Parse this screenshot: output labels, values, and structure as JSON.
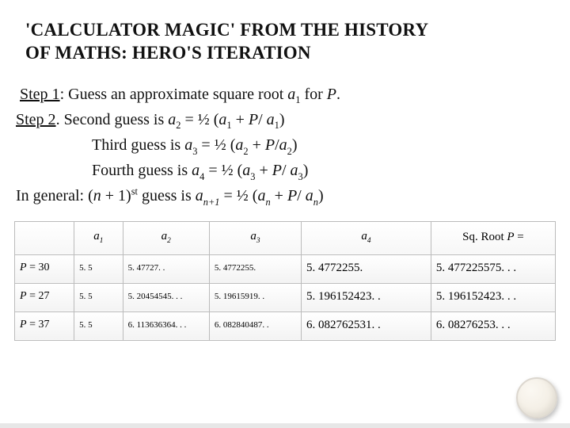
{
  "title_line1": "'CALCULATOR MAGIC' FROM THE HISTORY",
  "title_line2": "OF MATHS: HERO'S ITERATION",
  "steps": {
    "s1_label": "Step 1",
    "s1_text_a": ": Guess an approximate square root ",
    "s1_a": "a",
    "s1_sub": "1",
    "s1_text_b": " for ",
    "s1_P": "P",
    "s1_end": ".",
    "s2_label": "Step 2",
    "s2_dot": ".",
    "s2_text": "   Second guess is ",
    "s2_eq_a": "a",
    "s2_eq_sub": "2",
    "s2_eq_mid": " = ½ (",
    "s2_eq_a1": "a",
    "s2_eq_a1s": "1",
    "s2_eq_plus": " + ",
    "s2_eq_P": "P",
    "s2_eq_slash": "/ ",
    "s2_eq_a1b": "a",
    "s2_eq_a1bs": "1",
    "s2_eq_close": ")",
    "s3_text": "Third guess is ",
    "s3_a": "a",
    "s3_sub": "3",
    "s3_mid": " = ½ (",
    "s3_a2": "a",
    "s3_a2s": "2",
    "s3_plus": " + ",
    "s3_P": "P",
    "s3_slash": "/",
    "s3_a2b": "a",
    "s3_a2bs": "2",
    "s3_close": ")",
    "s4_text": "Fourth guess is ",
    "s4_a": "a",
    "s4_sub": "4",
    "s4_mid": " = ½ (",
    "s4_a3": "a",
    "s4_a3s": "3",
    "s4_plus": " + ",
    "s4_P": "P",
    "s4_slash": "/ ",
    "s4_a3b": "a",
    "s4_a3bs": "3",
    "s4_close": ")",
    "gen_pre": "In general: (",
    "gen_n": "n",
    "gen_plus1": " + 1)",
    "gen_st": "st",
    "gen_guess": " guess is ",
    "gen_a": "a",
    "gen_asub": "n+1",
    "gen_mid": " = ½ (",
    "gen_an": "a",
    "gen_ans": "n",
    "gen_plus": " + ",
    "gen_P": "P",
    "gen_slash": "/ ",
    "gen_anb": "a",
    "gen_anbs": "n",
    "gen_close": ")"
  },
  "table": {
    "headers": {
      "h0": "",
      "h1_a": "a",
      "h1_s": "1",
      "h2_a": "a",
      "h2_s": "2",
      "h3_a": "a",
      "h3_s": "3",
      "h4_a": "a",
      "h4_s": "4",
      "h5_pre": "Sq. Root ",
      "h5_P": "P",
      "h5_post": " ="
    },
    "rows": [
      {
        "P": "30",
        "a1": "5. 5",
        "a2": "5. 47727. .",
        "a3": "5. 4772255.",
        "a4": "5. 4772255.",
        "root": "5. 477225575. . ."
      },
      {
        "P": "27",
        "a1": "5. 5",
        "a2": "5. 20454545. . .",
        "a3": "5. 19615919. .",
        "a4": "5. 196152423. .",
        "root": "5. 196152423. . ."
      },
      {
        "P": "37",
        "a1": "5. 5",
        "a2": "6. 113636364. . .",
        "a3": "6. 082840487. .",
        "a4": "6. 082762531. .",
        "root": "6. 08276253. . ."
      }
    ]
  },
  "style": {
    "title_color": "#111111",
    "body_color": "#111111",
    "border_color": "#bbbbbb",
    "row_grad_top": "#ffffff",
    "row_grad_bot": "#f3f3f3",
    "title_fontsize": 23,
    "body_fontsize": 20,
    "small_cell_fontsize": 11,
    "big_cell_fontsize": 15
  }
}
